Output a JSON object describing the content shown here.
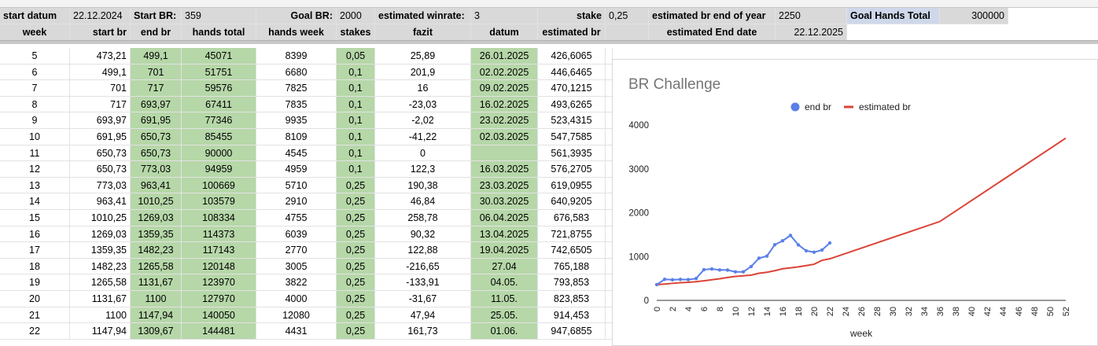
{
  "info_row": {
    "start_datum_label": "start datum",
    "start_datum_value": "22.12.2024",
    "start_br_label": "Start BR:",
    "start_br_value": "359",
    "goal_br_label": "Goal BR:",
    "goal_br_value": "2000",
    "winrate_label": "estimated winrate:",
    "winrate_value": "3",
    "stake_label": "stake",
    "stake_value": "0,25",
    "br_eoy_label": "estimated br end of year",
    "br_eoy_value": "2250",
    "goal_hands_label": "Goal Hands Total",
    "goal_hands_value": "300000"
  },
  "header_row": {
    "week": "week",
    "start_br": "start br",
    "end_br": "end br",
    "hands_total": "hands total",
    "hands_week": "hands week",
    "stakes": "stakes",
    "fazit": "fazit",
    "datum": "datum",
    "estimated_br": "estimated br",
    "end_date_label": "estimated End date",
    "end_date_value": "22.12.2025"
  },
  "rows": [
    {
      "week": "5",
      "start_br": "473,21",
      "end_br": "499,1",
      "hands_total": "45071",
      "hands_week": "8399",
      "stakes": "0,05",
      "fazit": "25,89",
      "datum": "26.01.2025",
      "estimated_br": "426,6065"
    },
    {
      "week": "6",
      "start_br": "499,1",
      "end_br": "701",
      "hands_total": "51751",
      "hands_week": "6680",
      "stakes": "0,1",
      "fazit": "201,9",
      "datum": "02.02.2025",
      "estimated_br": "446,6465"
    },
    {
      "week": "7",
      "start_br": "701",
      "end_br": "717",
      "hands_total": "59576",
      "hands_week": "7825",
      "stakes": "0,1",
      "fazit": "16",
      "datum": "09.02.2025",
      "estimated_br": "470,1215"
    },
    {
      "week": "8",
      "start_br": "717",
      "end_br": "693,97",
      "hands_total": "67411",
      "hands_week": "7835",
      "stakes": "0,1",
      "fazit": "-23,03",
      "datum": "16.02.2025",
      "estimated_br": "493,6265"
    },
    {
      "week": "9",
      "start_br": "693,97",
      "end_br": "691,95",
      "hands_total": "77346",
      "hands_week": "9935",
      "stakes": "0,1",
      "fazit": "-2,02",
      "datum": "23.02.2025",
      "estimated_br": "523,4315"
    },
    {
      "week": "10",
      "start_br": "691,95",
      "end_br": "650,73",
      "hands_total": "85455",
      "hands_week": "8109",
      "stakes": "0,1",
      "fazit": "-41,22",
      "datum": "02.03.2025",
      "estimated_br": "547,7585"
    },
    {
      "week": "11",
      "start_br": "650,73",
      "end_br": "650,73",
      "hands_total": "90000",
      "hands_week": "4545",
      "stakes": "0,1",
      "fazit": "0",
      "datum": "",
      "estimated_br": "561,3935"
    },
    {
      "week": "12",
      "start_br": "650,73",
      "end_br": "773,03",
      "hands_total": "94959",
      "hands_week": "4959",
      "stakes": "0,1",
      "fazit": "122,3",
      "datum": "16.03.2025",
      "estimated_br": "576,2705"
    },
    {
      "week": "13",
      "start_br": "773,03",
      "end_br": "963,41",
      "hands_total": "100669",
      "hands_week": "5710",
      "stakes": "0,25",
      "fazit": "190,38",
      "datum": "23.03.2025",
      "estimated_br": "619,0955"
    },
    {
      "week": "14",
      "start_br": "963,41",
      "end_br": "1010,25",
      "hands_total": "103579",
      "hands_week": "2910",
      "stakes": "0,25",
      "fazit": "46,84",
      "datum": "30.03.2025",
      "estimated_br": "640,9205"
    },
    {
      "week": "15",
      "start_br": "1010,25",
      "end_br": "1269,03",
      "hands_total": "108334",
      "hands_week": "4755",
      "stakes": "0,25",
      "fazit": "258,78",
      "datum": "06.04.2025",
      "estimated_br": "676,583"
    },
    {
      "week": "16",
      "start_br": "1269,03",
      "end_br": "1359,35",
      "hands_total": "114373",
      "hands_week": "6039",
      "stakes": "0,25",
      "fazit": "90,32",
      "datum": "13.04.2025",
      "estimated_br": "721,8755"
    },
    {
      "week": "17",
      "start_br": "1359,35",
      "end_br": "1482,23",
      "hands_total": "117143",
      "hands_week": "2770",
      "stakes": "0,25",
      "fazit": "122,88",
      "datum": "19.04.2025",
      "estimated_br": "742,6505"
    },
    {
      "week": "18",
      "start_br": "1482,23",
      "end_br": "1265,58",
      "hands_total": "120148",
      "hands_week": "3005",
      "stakes": "0,25",
      "fazit": "-216,65",
      "datum": "27.04",
      "estimated_br": "765,188"
    },
    {
      "week": "19",
      "start_br": "1265,58",
      "end_br": "1131,67",
      "hands_total": "123970",
      "hands_week": "3822",
      "stakes": "0,25",
      "fazit": "-133,91",
      "datum": "04.05.",
      "estimated_br": "793,853"
    },
    {
      "week": "20",
      "start_br": "1131,67",
      "end_br": "1100",
      "hands_total": "127970",
      "hands_week": "4000",
      "stakes": "0,25",
      "fazit": "-31,67",
      "datum": "11.05.",
      "estimated_br": "823,853"
    },
    {
      "week": "21",
      "start_br": "1100",
      "end_br": "1147,94",
      "hands_total": "140050",
      "hands_week": "12080",
      "stakes": "0,25",
      "fazit": "47,94",
      "datum": "25.05.",
      "estimated_br": "914,453"
    },
    {
      "week": "22",
      "start_br": "1147,94",
      "end_br": "1309,67",
      "hands_total": "144481",
      "hands_week": "4431",
      "stakes": "0,25",
      "fazit": "161,73",
      "datum": "01.06.",
      "estimated_br": "947,6855"
    }
  ],
  "colors": {
    "header_grey": "#d9d9d9",
    "green_fill": "#b6d7a8",
    "end_br_series": "#5b7fe9",
    "estimated_br_series": "#db4437"
  },
  "chart_data": {
    "type": "line",
    "title": "BR Challenge",
    "xlabel": "week",
    "ylabel": "",
    "xlim": [
      0,
      52
    ],
    "ylim": [
      0,
      4000
    ],
    "x_ticks": [
      0,
      2,
      4,
      6,
      8,
      10,
      12,
      14,
      16,
      18,
      20,
      22,
      24,
      26,
      28,
      30,
      32,
      34,
      36,
      38,
      40,
      42,
      44,
      46,
      48,
      50,
      52
    ],
    "y_ticks": [
      0,
      1000,
      2000,
      3000,
      4000
    ],
    "grid": false,
    "legend_position": "top",
    "series": [
      {
        "name": "end br",
        "color": "#5b7fe9",
        "marker": "circle",
        "x": [
          0,
          1,
          2,
          3,
          4,
          5,
          6,
          7,
          8,
          9,
          10,
          11,
          12,
          13,
          14,
          15,
          16,
          17,
          18,
          19,
          20,
          21,
          22
        ],
        "y": [
          359,
          480,
          470,
          478,
          473,
          499,
          701,
          717,
          694,
          692,
          651,
          651,
          773,
          963,
          1010,
          1269,
          1359,
          1482,
          1266,
          1132,
          1100,
          1148,
          1310
        ]
      },
      {
        "name": "estimated br",
        "color": "#db4437",
        "marker": "none",
        "x": [
          0,
          1,
          2,
          3,
          4,
          5,
          6,
          7,
          8,
          9,
          10,
          11,
          12,
          13,
          14,
          15,
          16,
          17,
          18,
          19,
          20,
          21,
          22,
          36,
          52
        ],
        "y": [
          359,
          373,
          389,
          403,
          413,
          427,
          447,
          470,
          494,
          523,
          548,
          561,
          576,
          619,
          641,
          677,
          722,
          743,
          765,
          794,
          824,
          914,
          948,
          1800,
          3700
        ]
      }
    ]
  }
}
